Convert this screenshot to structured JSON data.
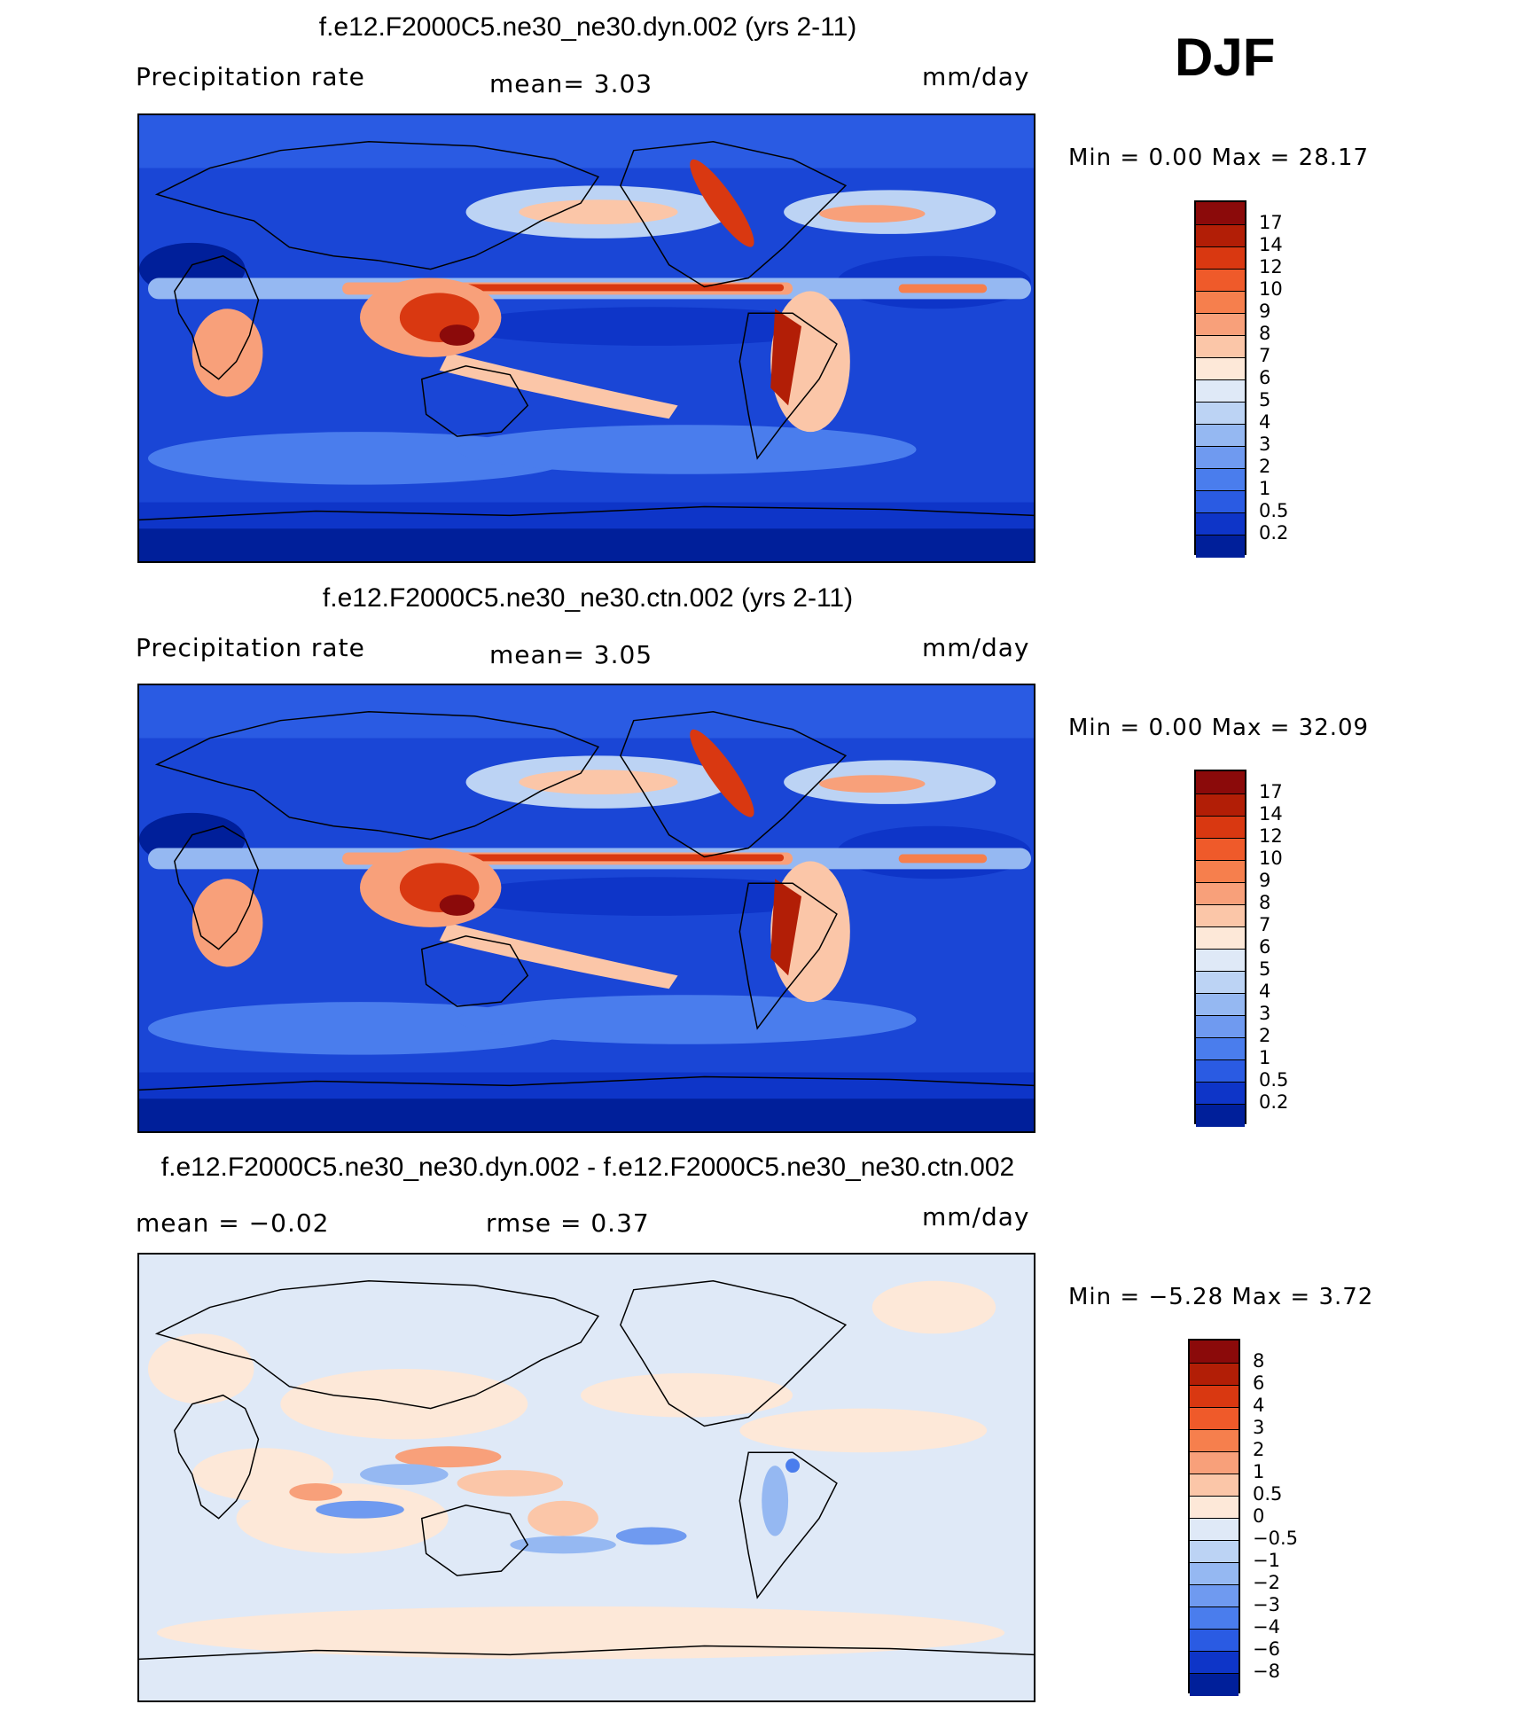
{
  "season": "DJF",
  "panels": [
    {
      "id": "dyn",
      "title": "f.e12.F2000C5.ne30_ne30.dyn.002 (yrs 2-11)",
      "variable": "Precipitation rate",
      "stat1": "mean=   3.03",
      "stat2": "",
      "units": "mm/day",
      "minmax": "Min =   0.00 Max =  28.17",
      "colorbar_labels": [
        "17",
        "14",
        "12",
        "10",
        "9",
        "8",
        "7",
        "6",
        "5",
        "4",
        "3",
        "2",
        "1",
        "0.5",
        "0.2"
      ],
      "colorbar_colors": [
        "#8b0a0a",
        "#b21e06",
        "#d93811",
        "#ef5a2a",
        "#f67f4d",
        "#f8a07a",
        "#fbc6a8",
        "#fde8d8",
        "#dfe9f7",
        "#bcd3f4",
        "#95b8f2",
        "#6f9af0",
        "#4a7ded",
        "#2a5be3",
        "#0e35c8",
        "#001f9a"
      ],
      "map_style": "precip"
    },
    {
      "id": "ctn",
      "title": "f.e12.F2000C5.ne30_ne30.ctn.002 (yrs 2-11)",
      "variable": "Precipitation rate",
      "stat1": "mean=   3.05",
      "stat2": "",
      "units": "mm/day",
      "minmax": "Min =   0.00 Max =  32.09",
      "colorbar_labels": [
        "17",
        "14",
        "12",
        "10",
        "9",
        "8",
        "7",
        "6",
        "5",
        "4",
        "3",
        "2",
        "1",
        "0.5",
        "0.2"
      ],
      "colorbar_colors": [
        "#8b0a0a",
        "#b21e06",
        "#d93811",
        "#ef5a2a",
        "#f67f4d",
        "#f8a07a",
        "#fbc6a8",
        "#fde8d8",
        "#dfe9f7",
        "#bcd3f4",
        "#95b8f2",
        "#6f9af0",
        "#4a7ded",
        "#2a5be3",
        "#0e35c8",
        "#001f9a"
      ],
      "map_style": "precip"
    },
    {
      "id": "diff",
      "title": "f.e12.F2000C5.ne30_ne30.dyn.002 - f.e12.F2000C5.ne30_ne30.ctn.002",
      "variable": "",
      "stat1": "mean =  −0.02",
      "stat2": "rmse =   0.37",
      "units": "mm/day",
      "minmax": "Min =  −5.28 Max =   3.72",
      "colorbar_labels": [
        "8",
        "6",
        "4",
        "3",
        "2",
        "1",
        "0.5",
        "0",
        "−0.5",
        "−1",
        "−2",
        "−3",
        "−4",
        "−6",
        "−8"
      ],
      "colorbar_colors": [
        "#8b0a0a",
        "#b21e06",
        "#d93811",
        "#ef5a2a",
        "#f67f4d",
        "#f8a07a",
        "#fbc6a8",
        "#fde8d8",
        "#dfe9f7",
        "#bcd3f4",
        "#95b8f2",
        "#6f9af0",
        "#4a7ded",
        "#2a5be3",
        "#0e35c8",
        "#001f9a"
      ],
      "map_style": "diff"
    }
  ]
}
